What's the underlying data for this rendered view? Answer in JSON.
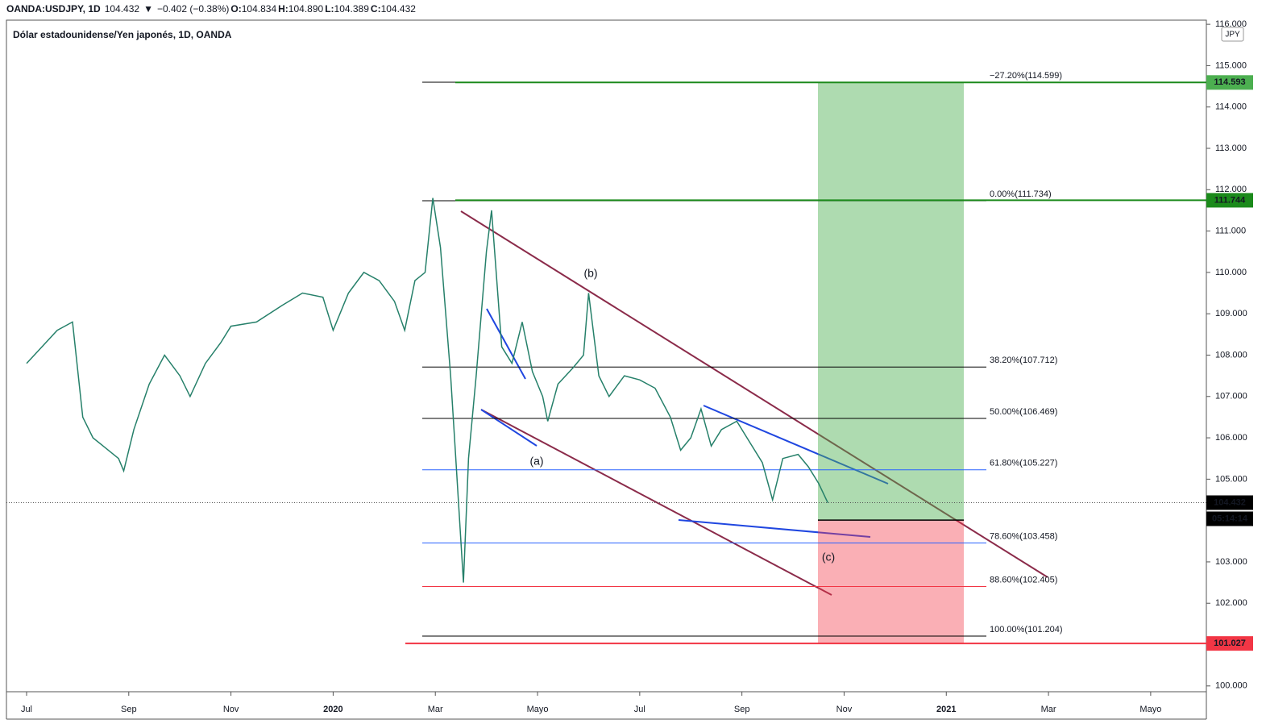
{
  "header": {
    "symbol": "OANDA:USDJPY, 1D",
    "last": "104.432",
    "arrow": "▼",
    "change": "−0.402 (−0.38%)",
    "ohlc": [
      [
        "O:",
        "104.834"
      ],
      [
        "H:",
        "104.890"
      ],
      [
        "L:",
        "104.389"
      ],
      [
        "C:",
        "104.432"
      ]
    ]
  },
  "chart_data": {
    "type": "line",
    "title": "Dólar estadounidense/Yen japonés, 1D, OANDA",
    "currency": "JPY",
    "series": [
      {
        "color": "#26806a",
        "x": [
          0,
          0.3,
          0.6,
          0.9,
          1.1,
          1.3,
          1.5,
          1.8,
          1.9,
          2.1,
          2.4,
          2.7,
          3.0,
          3.2,
          3.5,
          3.8,
          4.0,
          4.5,
          5.0,
          5.4,
          5.8,
          6.0,
          6.3,
          6.6,
          6.9,
          7.2,
          7.4,
          7.6,
          7.8,
          7.95,
          8.1,
          8.3,
          8.4,
          8.55,
          8.65,
          8.8,
          9.0,
          9.1,
          9.3,
          9.5,
          9.7,
          9.9,
          10.1,
          10.2,
          10.4,
          10.7,
          10.9,
          11.0,
          11.2,
          11.4,
          11.7,
          12.0,
          12.3,
          12.6,
          12.8,
          13.0,
          13.2,
          13.4,
          13.6,
          13.9,
          14.1,
          14.4,
          14.6,
          14.8,
          15.1,
          15.3,
          15.5,
          15.68
        ],
        "values": [
          107.8,
          108.2,
          108.6,
          108.8,
          106.5,
          106.0,
          105.8,
          105.5,
          105.2,
          106.2,
          107.3,
          108.0,
          107.5,
          107.0,
          107.8,
          108.3,
          108.7,
          108.8,
          109.2,
          109.5,
          109.4,
          108.6,
          109.5,
          110.0,
          109.8,
          109.3,
          108.6,
          109.8,
          110.0,
          111.8,
          110.6,
          107.5,
          105.5,
          102.5,
          105.5,
          107.5,
          110.5,
          111.5,
          108.2,
          107.8,
          108.8,
          107.6,
          107.0,
          106.4,
          107.3,
          107.7,
          108.0,
          109.5,
          107.5,
          107.0,
          107.5,
          107.4,
          107.2,
          106.5,
          105.7,
          106.0,
          106.7,
          105.8,
          106.2,
          106.4,
          106.0,
          105.4,
          104.5,
          105.5,
          105.6,
          105.3,
          104.9,
          104.432
        ]
      }
    ],
    "xlim": [
      -0.394,
      23.09
    ],
    "xticks": [
      {
        "value": 0,
        "label": "Jul"
      },
      {
        "value": 2,
        "label": "Sep"
      },
      {
        "value": 4,
        "label": "Nov"
      },
      {
        "value": 6,
        "label": "2020"
      },
      {
        "value": 8,
        "label": "Mar"
      },
      {
        "value": 10,
        "label": "Mayo"
      },
      {
        "value": 12,
        "label": "Jul"
      },
      {
        "value": 14,
        "label": "Sep"
      },
      {
        "value": 16,
        "label": "Nov"
      },
      {
        "value": 18,
        "label": "2021"
      },
      {
        "value": 20,
        "label": "Mar"
      },
      {
        "value": 22,
        "label": "Mayo"
      }
    ],
    "ylim": [
      99.86,
      116.1
    ],
    "yticks": [
      {
        "value": 100,
        "label": "100.000"
      },
      {
        "value": 101,
        "label": "101.000"
      },
      {
        "value": 102,
        "label": "102.000"
      },
      {
        "value": 103,
        "label": "103.000"
      },
      {
        "value": 104,
        "label": "104.000"
      },
      {
        "value": 105,
        "label": "105.000"
      },
      {
        "value": 106,
        "label": "106.000"
      },
      {
        "value": 107,
        "label": "107.000"
      },
      {
        "value": 108,
        "label": "108.000"
      },
      {
        "value": 109,
        "label": "109.000"
      },
      {
        "value": 110,
        "label": "110.000"
      },
      {
        "value": 111,
        "label": "111.000"
      },
      {
        "value": 112,
        "label": "112.000"
      },
      {
        "value": 113,
        "label": "113.000"
      },
      {
        "value": 114,
        "label": "114.000"
      },
      {
        "value": 115,
        "label": "115.000"
      },
      {
        "value": 116,
        "label": "116.000"
      }
    ],
    "fib_levels": [
      {
        "label": "−27.20%(114.599)",
        "value": 114.599,
        "color": "#000000"
      },
      {
        "label": "0.00%(111.734)",
        "value": 111.734,
        "color": "#000000"
      },
      {
        "label": "38.20%(107.712)",
        "value": 107.712,
        "color": "#000000"
      },
      {
        "label": "50.00%(106.469)",
        "value": 106.469,
        "color": "#000000"
      },
      {
        "label": "61.80%(105.227)",
        "value": 105.227,
        "color": "#2962ff"
      },
      {
        "label": "78.60%(103.458)",
        "value": 103.458,
        "color": "#2962ff"
      },
      {
        "label": "88.60%(102.405)",
        "value": 102.405,
        "color": "#f23645"
      },
      {
        "label": "100.00%(101.204)",
        "value": 101.204,
        "color": "#000000"
      }
    ],
    "position": {
      "entry": 104.01,
      "target": 114.593,
      "stop": 101.027
    },
    "price_tags": [
      {
        "value": 114.593,
        "color": "#4caf50"
      },
      {
        "value": 111.744,
        "color": "#1b8a1b"
      },
      {
        "value": 104.432,
        "color": "#000000"
      },
      {
        "value": 101.027,
        "color": "#f23645"
      }
    ],
    "countdown": "05:14:14",
    "wave_labels": [
      "(a)",
      "(b)",
      "(c)"
    ]
  }
}
